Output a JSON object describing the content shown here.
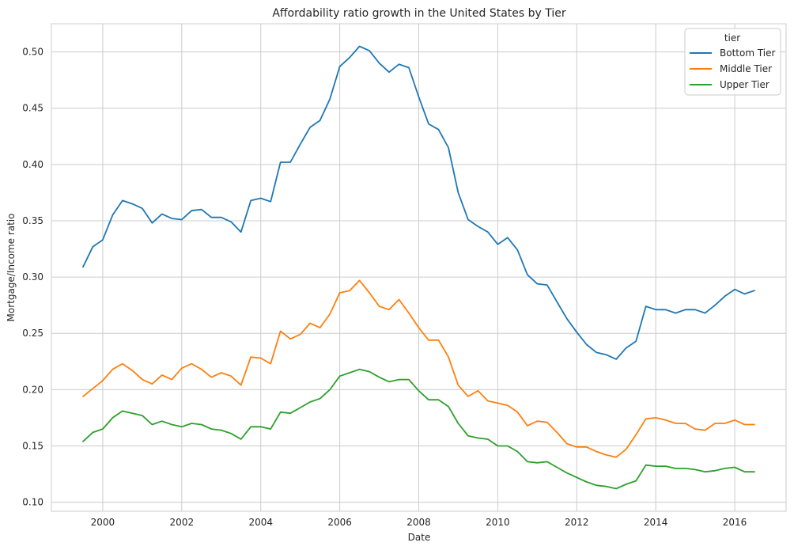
{
  "chart_data": {
    "type": "line",
    "title": "Affordability ratio growth in the United States by Tier",
    "xlabel": "Date",
    "ylabel": "Mortgage/Income ratio",
    "xlim": [
      1998.7,
      2017.3
    ],
    "ylim": [
      0.092,
      0.525
    ],
    "x_ticks": [
      2000,
      2002,
      2004,
      2006,
      2008,
      2010,
      2012,
      2014,
      2016
    ],
    "y_ticks": [
      0.1,
      0.15,
      0.2,
      0.25,
      0.3,
      0.35,
      0.4,
      0.45,
      0.5
    ],
    "y_tick_labels": [
      "0.10",
      "0.15",
      "0.20",
      "0.25",
      "0.30",
      "0.35",
      "0.40",
      "0.45",
      "0.50"
    ],
    "grid": true,
    "legend": {
      "title": "tier",
      "position": "top-right"
    },
    "x": [
      1999.5,
      1999.75,
      2000.0,
      2000.25,
      2000.5,
      2000.75,
      2001.0,
      2001.25,
      2001.5,
      2001.75,
      2002.0,
      2002.25,
      2002.5,
      2002.75,
      2003.0,
      2003.25,
      2003.5,
      2003.75,
      2004.0,
      2004.25,
      2004.5,
      2004.75,
      2005.0,
      2005.25,
      2005.5,
      2005.75,
      2006.0,
      2006.25,
      2006.5,
      2006.75,
      2007.0,
      2007.25,
      2007.5,
      2007.75,
      2008.0,
      2008.25,
      2008.5,
      2008.75,
      2009.0,
      2009.25,
      2009.5,
      2009.75,
      2010.0,
      2010.25,
      2010.5,
      2010.75,
      2011.0,
      2011.25,
      2011.5,
      2011.75,
      2012.0,
      2012.25,
      2012.5,
      2012.75,
      2013.0,
      2013.25,
      2013.5,
      2013.75,
      2014.0,
      2014.25,
      2014.5,
      2014.75,
      2015.0,
      2015.25,
      2015.5,
      2015.75,
      2016.0,
      2016.25,
      2016.5
    ],
    "series": [
      {
        "name": "Bottom Tier",
        "color": "#1f77b4",
        "values": [
          0.309,
          0.327,
          0.333,
          0.355,
          0.368,
          0.365,
          0.361,
          0.348,
          0.356,
          0.352,
          0.351,
          0.359,
          0.36,
          0.353,
          0.353,
          0.349,
          0.34,
          0.368,
          0.37,
          0.367,
          0.402,
          0.402,
          0.418,
          0.433,
          0.439,
          0.458,
          0.487,
          0.495,
          0.505,
          0.501,
          0.49,
          0.482,
          0.489,
          0.486,
          0.46,
          0.436,
          0.431,
          0.415,
          0.375,
          0.351,
          0.345,
          0.34,
          0.329,
          0.335,
          0.324,
          0.302,
          0.294,
          0.293,
          0.278,
          0.263,
          0.251,
          0.24,
          0.233,
          0.231,
          0.227,
          0.237,
          0.243,
          0.274,
          0.271,
          0.271,
          0.268,
          0.271,
          0.271,
          0.268,
          0.275,
          0.283,
          0.289,
          0.285,
          0.288
        ]
      },
      {
        "name": "Middle Tier",
        "color": "#ff7f0e",
        "values": [
          0.194,
          0.201,
          0.208,
          0.218,
          0.223,
          0.217,
          0.209,
          0.205,
          0.213,
          0.209,
          0.219,
          0.223,
          0.218,
          0.211,
          0.215,
          0.212,
          0.204,
          0.229,
          0.228,
          0.223,
          0.252,
          0.245,
          0.249,
          0.259,
          0.255,
          0.267,
          0.286,
          0.288,
          0.297,
          0.286,
          0.274,
          0.271,
          0.28,
          0.268,
          0.255,
          0.244,
          0.244,
          0.229,
          0.204,
          0.194,
          0.199,
          0.19,
          0.188,
          0.186,
          0.18,
          0.168,
          0.172,
          0.171,
          0.162,
          0.152,
          0.149,
          0.149,
          0.145,
          0.142,
          0.14,
          0.147,
          0.16,
          0.174,
          0.175,
          0.173,
          0.17,
          0.17,
          0.165,
          0.164,
          0.17,
          0.17,
          0.173,
          0.169,
          0.169
        ]
      },
      {
        "name": "Upper Tier",
        "color": "#2ca02c",
        "values": [
          0.154,
          0.162,
          0.165,
          0.175,
          0.181,
          0.179,
          0.177,
          0.169,
          0.172,
          0.169,
          0.167,
          0.17,
          0.169,
          0.165,
          0.164,
          0.161,
          0.156,
          0.167,
          0.167,
          0.165,
          0.18,
          0.179,
          0.184,
          0.189,
          0.192,
          0.2,
          0.212,
          0.215,
          0.218,
          0.216,
          0.211,
          0.207,
          0.209,
          0.209,
          0.199,
          0.191,
          0.191,
          0.185,
          0.17,
          0.159,
          0.157,
          0.156,
          0.15,
          0.15,
          0.145,
          0.136,
          0.135,
          0.136,
          0.131,
          0.126,
          0.122,
          0.118,
          0.115,
          0.114,
          0.112,
          0.116,
          0.119,
          0.133,
          0.132,
          0.132,
          0.13,
          0.13,
          0.129,
          0.127,
          0.128,
          0.13,
          0.131,
          0.127,
          0.127
        ]
      }
    ]
  }
}
